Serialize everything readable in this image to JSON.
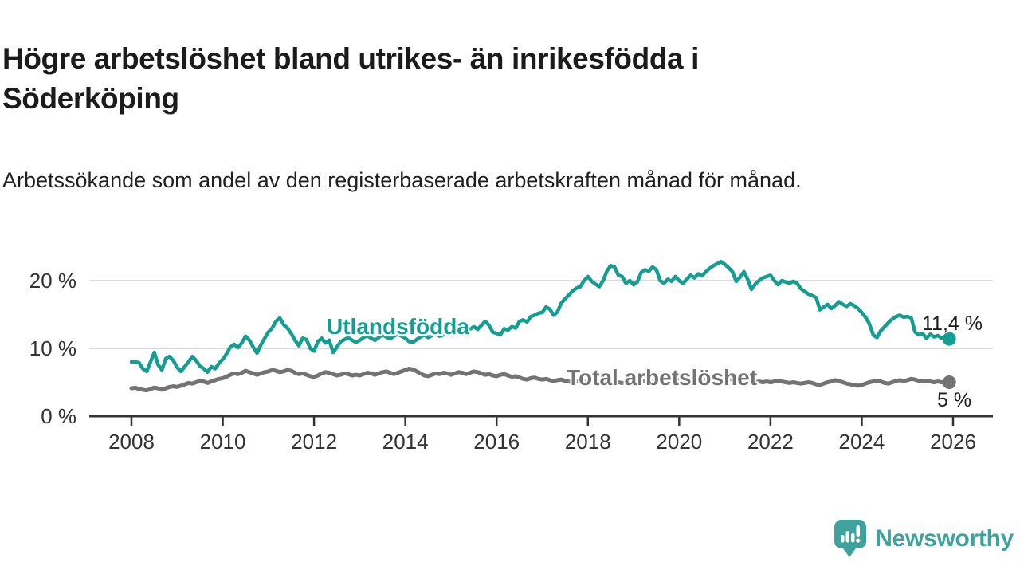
{
  "header": {
    "title": "Högre arbetslöshet bland utrikes- än inrikesfödda i Söderköping",
    "subtitle": "Arbetssökande som andel av den registerbaserade arbetskraften månad för månad."
  },
  "footer": {
    "brand": "Newsworthy",
    "brand_color": "#3ea39c"
  },
  "chart_data": {
    "type": "line",
    "title": "Högre arbetslöshet bland utrikes- än inrikesfödda i Söderköping",
    "subtitle": "Arbetssökande som andel av den registerbaserade arbetskraften månad för månad.",
    "xlabel": "",
    "ylabel": "",
    "xlim": [
      2008,
      2026
    ],
    "ylim": [
      0,
      24
    ],
    "grid": "horizontal",
    "legend_position": "inline-line-labels",
    "axis_color": "#333333",
    "gridline_color": "#dbdbdb",
    "x_ticks": [
      2008,
      2010,
      2012,
      2014,
      2016,
      2018,
      2020,
      2022,
      2024,
      2026
    ],
    "y_ticks": [
      {
        "value": 0,
        "label": "0 %"
      },
      {
        "value": 10,
        "label": "10 %"
      },
      {
        "value": 20,
        "label": "20 %"
      }
    ],
    "series": [
      {
        "name": "Utlandsfödda",
        "color": "#149d90",
        "line_width": 4.5,
        "end_label": "11,4 %",
        "end_value": 11.4,
        "start_year": 2008,
        "points_per_year": 12,
        "values": [
          8.0,
          8.0,
          7.9,
          7.0,
          6.6,
          8.0,
          9.4,
          7.6,
          6.8,
          8.5,
          8.8,
          8.2,
          7.2,
          6.6,
          7.3,
          8.0,
          8.8,
          8.2,
          7.4,
          7.0,
          6.5,
          7.3,
          7.0,
          7.8,
          8.4,
          9.2,
          10.2,
          10.6,
          10.1,
          10.8,
          11.8,
          11.2,
          10.2,
          9.3,
          10.5,
          11.5,
          12.4,
          13.0,
          14.0,
          14.5,
          13.5,
          13.0,
          12.2,
          11.2,
          10.4,
          11.5,
          11.3,
          10.0,
          9.6,
          11.0,
          11.5,
          10.8,
          11.2,
          9.4,
          10.2,
          11.0,
          11.3,
          11.6,
          11.2,
          10.9,
          11.2,
          11.6,
          11.9,
          11.5,
          11.2,
          11.6,
          12.0,
          11.7,
          11.4,
          11.8,
          12.1,
          11.8,
          11.5,
          11.0,
          10.9,
          11.3,
          11.7,
          12.0,
          11.6,
          11.9,
          12.2,
          11.8,
          12.0,
          12.3,
          12.0,
          12.3,
          12.6,
          12.2,
          12.5,
          12.8,
          13.2,
          12.8,
          13.4,
          14.0,
          13.4,
          12.4,
          12.2,
          12.0,
          12.9,
          12.7,
          13.2,
          13.0,
          14.0,
          14.2,
          13.9,
          14.7,
          14.9,
          15.2,
          15.3,
          16.1,
          15.8,
          14.9,
          15.4,
          16.7,
          17.3,
          17.9,
          18.5,
          18.9,
          19.1,
          20.0,
          20.6,
          19.9,
          19.5,
          19.1,
          20.0,
          21.4,
          22.2,
          22.0,
          20.8,
          20.6,
          19.6,
          20.0,
          19.4,
          19.8,
          21.2,
          21.6,
          21.4,
          22.0,
          21.6,
          20.0,
          19.6,
          20.2,
          19.9,
          20.6,
          20.0,
          19.6,
          20.2,
          20.8,
          20.4,
          21.0,
          20.7,
          21.3,
          21.8,
          22.2,
          22.5,
          22.8,
          22.4,
          21.9,
          21.3,
          19.9,
          20.5,
          21.3,
          20.2,
          18.7,
          19.5,
          20.0,
          20.4,
          20.6,
          20.8,
          20.0,
          19.4,
          20.0,
          19.8,
          19.6,
          19.9,
          19.6,
          18.8,
          18.4,
          18.0,
          17.8,
          17.5,
          15.7,
          16.1,
          16.5,
          15.9,
          16.3,
          16.9,
          16.5,
          16.2,
          16.6,
          16.3,
          15.9,
          15.3,
          14.6,
          13.6,
          12.0,
          11.6,
          12.6,
          13.2,
          13.8,
          14.3,
          14.7,
          14.9,
          14.6,
          14.7,
          14.5,
          12.4,
          12.0,
          12.2,
          11.5,
          12.1,
          11.7,
          11.9,
          11.5,
          11.7,
          11.4
        ]
      },
      {
        "name": "Total arbetslöshet",
        "color": "#737373",
        "line_width": 5,
        "end_label": "5 %",
        "end_value": 5.0,
        "start_year": 2008,
        "points_per_year": 12,
        "values": [
          4.1,
          4.2,
          4.0,
          3.9,
          3.8,
          4.0,
          4.2,
          4.1,
          3.9,
          4.1,
          4.3,
          4.4,
          4.3,
          4.5,
          4.7,
          4.9,
          4.8,
          5.0,
          5.2,
          5.1,
          4.9,
          5.1,
          5.3,
          5.5,
          5.6,
          5.8,
          6.1,
          6.3,
          6.2,
          6.4,
          6.7,
          6.5,
          6.3,
          6.1,
          6.3,
          6.5,
          6.6,
          6.8,
          6.7,
          6.5,
          6.6,
          6.8,
          6.7,
          6.4,
          6.2,
          6.3,
          6.1,
          5.9,
          5.8,
          6.0,
          6.3,
          6.5,
          6.4,
          6.2,
          6.0,
          6.1,
          6.3,
          6.2,
          6.0,
          6.1,
          6.0,
          6.2,
          6.4,
          6.3,
          6.1,
          6.3,
          6.5,
          6.6,
          6.4,
          6.2,
          6.4,
          6.6,
          6.8,
          7.0,
          6.9,
          6.6,
          6.3,
          6.0,
          5.9,
          6.1,
          6.3,
          6.2,
          6.4,
          6.3,
          6.1,
          6.3,
          6.5,
          6.4,
          6.2,
          6.4,
          6.6,
          6.5,
          6.3,
          6.1,
          6.2,
          6.0,
          5.9,
          6.1,
          6.2,
          6.0,
          5.8,
          5.9,
          5.7,
          5.5,
          5.4,
          5.6,
          5.7,
          5.5,
          5.4,
          5.5,
          5.3,
          5.2,
          5.3,
          5.4,
          5.2,
          5.1,
          5.0,
          5.1,
          5.2,
          5.1,
          5.0,
          5.1,
          5.2,
          5.0,
          4.9,
          5.0,
          5.2,
          5.1,
          5.0,
          4.9,
          5.0,
          5.1,
          5.0,
          5.2,
          5.3,
          5.2,
          5.1,
          5.2,
          5.3,
          5.2,
          5.1,
          5.2,
          5.3,
          5.4,
          5.3,
          5.2,
          5.4,
          5.5,
          5.4,
          5.5,
          5.6,
          5.5,
          5.4,
          5.3,
          5.4,
          5.3,
          5.4,
          5.5,
          5.4,
          5.3,
          5.2,
          5.3,
          5.2,
          5.1,
          5.0,
          5.1,
          5.0,
          5.1,
          5.0,
          5.1,
          5.2,
          5.1,
          5.0,
          4.9,
          5.0,
          4.9,
          4.8,
          4.9,
          5.0,
          4.9,
          4.7,
          4.6,
          4.8,
          5.0,
          5.1,
          5.3,
          5.2,
          5.0,
          4.8,
          4.7,
          4.6,
          4.5,
          4.6,
          4.8,
          5.0,
          5.1,
          5.2,
          5.1,
          4.9,
          4.8,
          5.0,
          5.2,
          5.3,
          5.2,
          5.3,
          5.5,
          5.4,
          5.2,
          5.1,
          5.2,
          5.1,
          5.0,
          5.1,
          5.0,
          4.9,
          5.0
        ]
      }
    ]
  }
}
